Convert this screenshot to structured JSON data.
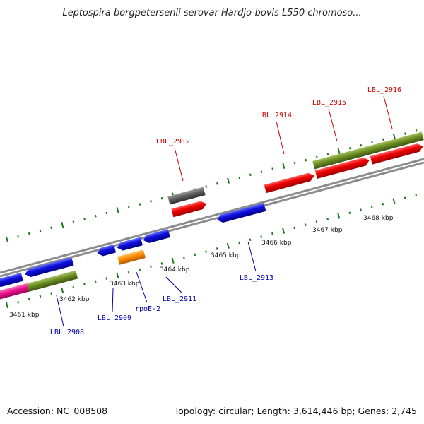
{
  "title": "Leptospira borgpetersenii serovar Hardjo-bovis L550 chromoso...",
  "footer": {
    "accession": "Accession: NC_008508",
    "summary": "Topology: circular; Length: 3,614,446 bp; Genes: 2,745"
  },
  "kbp_labels": [
    {
      "kbp": 3461,
      "text": "3461 kbp"
    },
    {
      "kbp": 3462,
      "text": "3462 kbp"
    },
    {
      "kbp": 3463,
      "text": "3463 kbp"
    },
    {
      "kbp": 3464,
      "text": "3464 kbp"
    },
    {
      "kbp": 3465,
      "text": "3465 kbp"
    },
    {
      "kbp": 3466,
      "text": "3466 kbp"
    },
    {
      "kbp": 3467,
      "text": "3467 kbp"
    },
    {
      "kbp": 3468,
      "text": "3468 kbp"
    }
  ],
  "genes": [
    {
      "name": "LBL_2908",
      "strand": "reverse",
      "color": "#1010dd"
    },
    {
      "name": "LBL_2909",
      "strand": "reverse",
      "color": "#1010dd"
    },
    {
      "name": "rpoE-2",
      "strand": "reverse",
      "color": "#ff8c00"
    },
    {
      "name": "LBL_2911",
      "strand": "reverse",
      "color": "#1010dd"
    },
    {
      "name": "LBL_2912",
      "strand": "forward",
      "color": "#ee0000"
    },
    {
      "name": "LBL_2913",
      "strand": "reverse",
      "color": "#1010dd"
    },
    {
      "name": "LBL_2914",
      "strand": "forward",
      "color": "#ee0000"
    },
    {
      "name": "LBL_2915",
      "strand": "forward",
      "color": "#ee0000"
    },
    {
      "name": "LBL_2916",
      "strand": "forward",
      "color": "#ee0000"
    }
  ],
  "colors": {
    "backbone": "#8c8c8c",
    "ticks": "#1a7a1a",
    "forward_label": "#cc0000",
    "reverse_label": "#0000aa",
    "olive": "#6b8e23",
    "pink": "#e8108c",
    "gray_feature": "#606060"
  }
}
